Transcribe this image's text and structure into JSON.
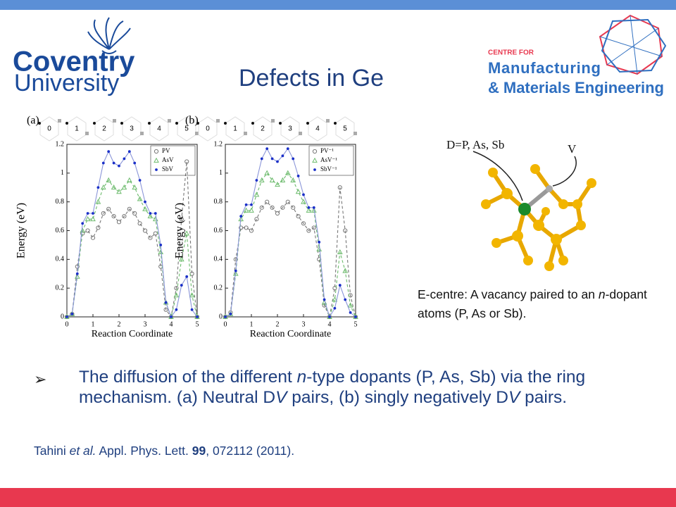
{
  "header": {
    "logo_line1": "Coventry",
    "logo_line2": "University",
    "title": "Defects in Ge",
    "partner_small": "CENTRE FOR",
    "partner_line1": "Manufacturing",
    "partner_line2": "& Materials Engineering"
  },
  "chart_data": [
    {
      "type": "line",
      "panel": "(a)",
      "ring_labels": [
        "0",
        "1",
        "2",
        "3",
        "4",
        "5"
      ],
      "y_label": "Energy (eV)",
      "x_label": "Reaction Coordinate",
      "xlim": [
        0,
        5
      ],
      "xticks": [
        0,
        1,
        2,
        3,
        4,
        5
      ],
      "ylim": [
        0,
        1.2
      ],
      "yticks": [
        0,
        0.2,
        0.4,
        0.6,
        0.8,
        1,
        1.2
      ],
      "x": [
        0,
        0.2,
        0.4,
        0.6,
        0.8,
        1,
        1.2,
        1.4,
        1.6,
        1.8,
        2,
        2.2,
        2.4,
        2.6,
        2.8,
        3,
        3.2,
        3.4,
        3.6,
        3.8,
        4,
        4.2,
        4.4,
        4.6,
        4.8,
        5
      ],
      "series": [
        {
          "name": "PV",
          "color": "#777777",
          "marker": "circle",
          "line_style": "dashed",
          "values": [
            0,
            0.02,
            0.35,
            0.58,
            0.6,
            0.55,
            0.62,
            0.72,
            0.75,
            0.7,
            0.66,
            0.7,
            0.75,
            0.72,
            0.65,
            0.6,
            0.55,
            0.58,
            0.35,
            0.05,
            0,
            0.2,
            0.68,
            1.08,
            0.3,
            0
          ]
        },
        {
          "name": "AsV",
          "color": "#6dbb6d",
          "marker": "triangle",
          "line_style": "dashed",
          "values": [
            0,
            0.02,
            0.28,
            0.6,
            0.68,
            0.68,
            0.8,
            0.9,
            0.95,
            0.9,
            0.87,
            0.9,
            0.95,
            0.9,
            0.82,
            0.75,
            0.7,
            0.68,
            0.45,
            0.1,
            0,
            0.15,
            0.4,
            0.58,
            0.15,
            0
          ]
        },
        {
          "name": "SbV",
          "color": "#1a2fc8",
          "marker": "dot",
          "line_style": "solid",
          "values": [
            0,
            0.02,
            0.3,
            0.65,
            0.72,
            0.72,
            0.9,
            1.07,
            1.15,
            1.07,
            1.05,
            1.1,
            1.15,
            1.07,
            0.95,
            0.8,
            0.72,
            0.72,
            0.5,
            0.1,
            0,
            0.05,
            0.22,
            0.28,
            0.05,
            0
          ]
        }
      ]
    },
    {
      "type": "line",
      "panel": "(b)",
      "ring_labels": [
        "0",
        "1",
        "2",
        "3",
        "4",
        "5"
      ],
      "y_label": "Energy (eV)",
      "x_label": "Reaction Coordinate",
      "xlim": [
        0,
        5
      ],
      "xticks": [
        0,
        1,
        2,
        3,
        4,
        5
      ],
      "ylim": [
        0,
        1.2
      ],
      "yticks": [
        0,
        0.2,
        0.4,
        0.6,
        0.8,
        1,
        1.2
      ],
      "x": [
        0,
        0.2,
        0.4,
        0.6,
        0.8,
        1,
        1.2,
        1.4,
        1.6,
        1.8,
        2,
        2.2,
        2.4,
        2.6,
        2.8,
        3,
        3.2,
        3.4,
        3.6,
        3.8,
        4,
        4.2,
        4.4,
        4.6,
        4.8,
        5
      ],
      "series": [
        {
          "name": "PV⁻¹",
          "color": "#777777",
          "marker": "circle",
          "line_style": "dashed",
          "values": [
            0,
            0.03,
            0.4,
            0.62,
            0.62,
            0.6,
            0.68,
            0.76,
            0.8,
            0.76,
            0.72,
            0.76,
            0.8,
            0.76,
            0.7,
            0.65,
            0.6,
            0.62,
            0.4,
            0.08,
            0,
            0.2,
            0.9,
            0.6,
            0.15,
            0
          ]
        },
        {
          "name": "AsV⁻¹",
          "color": "#6dbb6d",
          "marker": "triangle",
          "line_style": "dashed",
          "values": [
            0,
            0.02,
            0.3,
            0.68,
            0.74,
            0.74,
            0.85,
            0.95,
            1,
            0.95,
            0.92,
            0.95,
            1,
            0.95,
            0.87,
            0.8,
            0.74,
            0.74,
            0.47,
            0.1,
            0,
            0.12,
            0.45,
            0.32,
            0.08,
            0
          ]
        },
        {
          "name": "SbV⁻¹",
          "color": "#1a2fc8",
          "marker": "dot",
          "line_style": "solid",
          "values": [
            0,
            0.02,
            0.32,
            0.7,
            0.78,
            0.78,
            0.95,
            1.1,
            1.17,
            1.1,
            1.08,
            1.12,
            1.17,
            1.1,
            0.98,
            0.85,
            0.76,
            0.76,
            0.52,
            0.12,
            0,
            0.06,
            0.22,
            0.12,
            0.03,
            0
          ]
        }
      ]
    }
  ],
  "inset": {
    "label_d": "D=P, As, Sb",
    "label_v": "V",
    "caption": [
      {
        "text": "E-centre: A vacancy paired to an "
      },
      {
        "text": "n",
        "style": "italic"
      },
      {
        "text": "-dopant atoms (P, As or Sb)."
      }
    ]
  },
  "bullet": {
    "marker": "➢",
    "segments": [
      {
        "text": "The diffusion of the different "
      },
      {
        "text": "n",
        "style": "italic"
      },
      {
        "text": "-type dopants (P, As, Sb) via the ring mechanism. (a) Neutral D"
      },
      {
        "text": "V",
        "style": "italic"
      },
      {
        "text": " pairs, (b) singly negatively D"
      },
      {
        "text": "V",
        "style": "italic"
      },
      {
        "text": " pairs."
      }
    ]
  },
  "reference": {
    "segments": [
      {
        "text": "Tahini "
      },
      {
        "text": "et al.",
        "style": "italic"
      },
      {
        "text": " Appl. Phys. Lett. "
      },
      {
        "text": "99",
        "style": "bold"
      },
      {
        "text": ", 072112 (2011)."
      }
    ]
  }
}
